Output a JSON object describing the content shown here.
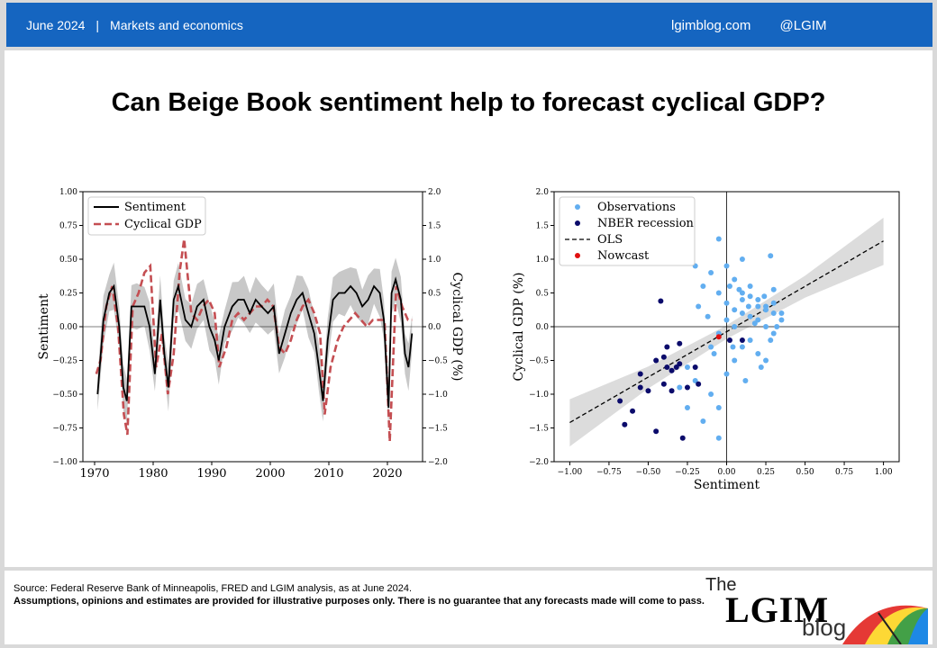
{
  "header": {
    "date": "June 2024",
    "section": "Markets and economics",
    "site": "lgimblog.com",
    "handle": "@LGIM"
  },
  "title": "Can Beige Book sentiment help to forecast cyclical GDP?",
  "footer": {
    "source": "Source: Federal Reserve Bank of Minneapolis, FRED and LGIM analysis, as at June 2024.",
    "disclaimer": "Assumptions, opinions and estimates are provided for illustrative purposes only. There is no guarantee that any forecasts made will come to pass.",
    "logo_the": "The",
    "logo_lgim": "LGIM",
    "logo_blog": "blog"
  },
  "colors": {
    "header_blue": "#1565c0",
    "sentiment": "#000000",
    "gdp": "#c44e52",
    "observations": "#62aef0",
    "nber": "#0b0b6b",
    "nowcast": "#e01010",
    "band": "#c8c8c8"
  },
  "chart_data": [
    {
      "type": "line",
      "xlim": [
        1968,
        2026
      ],
      "xticks": [
        1970,
        1980,
        1990,
        2000,
        2010,
        2020
      ],
      "ylabel": "Sentiment",
      "ylim": [
        -1.0,
        1.0
      ],
      "yticks": [
        "1.00",
        "0.75",
        "0.50",
        "0.25",
        "0.00",
        "−0.25",
        "−0.50",
        "−0.75",
        "−1.00"
      ],
      "y2label": "Cyclical GDP (%)",
      "y2lim": [
        -2.0,
        2.0
      ],
      "y2ticks": [
        "2.0",
        "1.5",
        "1.0",
        "0.5",
        "0.0",
        "−0.5",
        "−1.0",
        "−1.5",
        "−2.0"
      ],
      "legend": [
        "Sentiment",
        "Cyclical GDP"
      ],
      "legend_position": "top-left",
      "series": [
        {
          "name": "Sentiment",
          "axis": "left",
          "x": [
            1970.5,
            1971.5,
            1972.5,
            1973.3,
            1974.2,
            1974.9,
            1975.5,
            1976.3,
            1977.2,
            1978.5,
            1979.4,
            1980.3,
            1981.2,
            1981.9,
            1982.6,
            1983.5,
            1984.3,
            1985.5,
            1986.5,
            1987.5,
            1988.6,
            1989.6,
            1990.5,
            1991.2,
            1992.2,
            1993.5,
            1994.5,
            1995.5,
            1996.5,
            1997.5,
            1998.5,
            1999.6,
            2000.6,
            2001.5,
            2002.5,
            2003.5,
            2004.5,
            2005.5,
            2006.5,
            2007.5,
            2008.3,
            2009.0,
            2009.8,
            2010.7,
            2011.7,
            2012.7,
            2013.7,
            2014.7,
            2015.7,
            2016.7,
            2017.7,
            2018.7,
            2019.4,
            2020.2,
            2020.7,
            2021.4,
            2022.3,
            2023.0,
            2023.6,
            2024.2
          ],
          "y": [
            -0.5,
            0.05,
            0.25,
            0.3,
            0.0,
            -0.45,
            -0.55,
            0.15,
            0.15,
            0.15,
            0.0,
            -0.35,
            0.2,
            -0.2,
            -0.45,
            0.2,
            0.3,
            0.05,
            0.0,
            0.15,
            0.2,
            0.0,
            -0.1,
            -0.25,
            0.0,
            0.15,
            0.2,
            0.2,
            0.1,
            0.2,
            0.15,
            0.1,
            0.15,
            -0.2,
            -0.05,
            0.1,
            0.2,
            0.25,
            0.1,
            -0.05,
            -0.3,
            -0.55,
            -0.1,
            0.2,
            0.25,
            0.25,
            0.3,
            0.25,
            0.15,
            0.2,
            0.3,
            0.25,
            0.05,
            -0.6,
            0.25,
            0.35,
            0.2,
            -0.2,
            -0.3,
            -0.05
          ]
        },
        {
          "name": "Cyclical GDP",
          "axis": "right",
          "x": [
            1970.3,
            1971.0,
            1972.0,
            1973.0,
            1974.0,
            1975.0,
            1975.6,
            1976.5,
            1977.5,
            1978.5,
            1979.5,
            1980.5,
            1981.5,
            1982.5,
            1983.5,
            1984.5,
            1985.3,
            1986.5,
            1987.5,
            1988.5,
            1989.5,
            1990.5,
            1991.3,
            1992.5,
            1993.5,
            1994.5,
            1995.5,
            1996.5,
            1997.5,
            1998.5,
            1999.5,
            2000.5,
            2001.5,
            2002.5,
            2003.5,
            2004.5,
            2005.5,
            2006.5,
            2007.5,
            2008.5,
            2009.3,
            2010.3,
            2011.5,
            2012.5,
            2013.5,
            2014.5,
            2015.5,
            2016.5,
            2017.5,
            2018.5,
            2019.5,
            2020.4,
            2021.5,
            2022.5,
            2023.5,
            2024.2
          ],
          "y": [
            -0.7,
            -0.5,
            0.3,
            0.6,
            0.0,
            -1.3,
            -1.6,
            0.3,
            0.5,
            0.8,
            0.9,
            -0.6,
            -0.1,
            -1.0,
            -0.4,
            0.8,
            1.3,
            0.2,
            0.1,
            0.3,
            0.4,
            0.2,
            -0.6,
            -0.3,
            0.1,
            0.2,
            0.1,
            0.2,
            0.3,
            0.3,
            0.4,
            0.3,
            -0.3,
            -0.4,
            -0.2,
            0.1,
            0.3,
            0.4,
            0.2,
            -0.1,
            -1.3,
            -0.6,
            -0.2,
            0.0,
            0.1,
            0.2,
            0.1,
            0.0,
            0.1,
            0.1,
            0.1,
            -1.7,
            0.6,
            0.3,
            0.1,
            0.1
          ]
        }
      ]
    },
    {
      "type": "scatter",
      "xlabel": "Sentiment",
      "ylabel": "Cyclical GDP (%)",
      "xlim": [
        -1.1,
        1.1
      ],
      "ylim": [
        -2.0,
        2.0
      ],
      "xticks": [
        "−1.00",
        "−0.75",
        "−0.50",
        "−0.25",
        "0.00",
        "0.25",
        "0.50",
        "0.75",
        "1.00"
      ],
      "yticks": [
        "2.0",
        "1.5",
        "1.0",
        "0.5",
        "0.0",
        "−0.5",
        "−1.0",
        "−1.5",
        "−2.0"
      ],
      "legend": [
        "Observations",
        "NBER recession",
        "OLS",
        "Nowcast"
      ],
      "legend_position": "top-left",
      "ols": {
        "x": [
          -1.0,
          1.0
        ],
        "y": [
          -1.42,
          1.27
        ]
      },
      "series": [
        {
          "name": "Observations",
          "points": [
            [
              -0.05,
              1.3
            ],
            [
              -0.1,
              0.8
            ],
            [
              0.0,
              0.9
            ],
            [
              0.05,
              0.7
            ],
            [
              0.1,
              0.5
            ],
            [
              0.15,
              0.6
            ],
            [
              0.2,
              0.4
            ],
            [
              0.25,
              0.3
            ],
            [
              0.3,
              0.2
            ],
            [
              0.35,
              0.1
            ],
            [
              0.28,
              1.05
            ],
            [
              0.1,
              1.0
            ],
            [
              -0.2,
              0.9
            ],
            [
              -0.15,
              0.6
            ],
            [
              -0.05,
              0.5
            ],
            [
              0.0,
              0.35
            ],
            [
              0.05,
              0.25
            ],
            [
              0.1,
              0.2
            ],
            [
              0.15,
              0.15
            ],
            [
              0.2,
              0.1
            ],
            [
              0.25,
              0.0
            ],
            [
              0.3,
              -0.1
            ],
            [
              -0.25,
              -0.6
            ],
            [
              -0.2,
              -0.8
            ],
            [
              -0.1,
              -1.0
            ],
            [
              -0.05,
              -1.2
            ],
            [
              0.0,
              -0.7
            ],
            [
              0.05,
              -0.5
            ],
            [
              0.1,
              -0.3
            ],
            [
              0.15,
              -0.2
            ],
            [
              0.2,
              -0.4
            ],
            [
              0.25,
              -0.5
            ],
            [
              -0.3,
              -0.9
            ],
            [
              -0.25,
              -1.2
            ],
            [
              -0.15,
              -1.4
            ],
            [
              -0.1,
              -0.3
            ],
            [
              -0.05,
              -0.1
            ],
            [
              0.0,
              0.1
            ],
            [
              0.05,
              0.0
            ],
            [
              0.1,
              0.4
            ],
            [
              0.15,
              0.45
            ],
            [
              0.2,
              0.3
            ],
            [
              0.25,
              0.25
            ],
            [
              0.3,
              0.35
            ],
            [
              0.35,
              0.2
            ],
            [
              -0.05,
              -1.65
            ],
            [
              0.12,
              -0.8
            ],
            [
              0.22,
              -0.6
            ],
            [
              -0.18,
              0.3
            ],
            [
              -0.12,
              0.15
            ],
            [
              0.02,
              0.6
            ],
            [
              0.08,
              0.55
            ],
            [
              0.18,
              0.05
            ],
            [
              0.28,
              -0.2
            ],
            [
              0.32,
              0.0
            ],
            [
              -0.08,
              -0.4
            ],
            [
              0.04,
              -0.3
            ],
            [
              0.14,
              0.3
            ],
            [
              0.24,
              0.45
            ],
            [
              0.3,
              0.55
            ]
          ]
        },
        {
          "name": "NBER recession",
          "points": [
            [
              -0.65,
              -1.45
            ],
            [
              -0.6,
              -1.25
            ],
            [
              -0.55,
              -0.7
            ],
            [
              -0.45,
              -0.5
            ],
            [
              -0.4,
              -0.45
            ],
            [
              -0.35,
              -0.65
            ],
            [
              -0.3,
              -0.55
            ],
            [
              -0.25,
              -0.9
            ],
            [
              -0.28,
              -1.65
            ],
            [
              -0.5,
              -0.95
            ],
            [
              -0.45,
              -1.55
            ],
            [
              -0.42,
              0.38
            ],
            [
              -0.38,
              -0.3
            ],
            [
              -0.32,
              -0.6
            ],
            [
              -0.4,
              -0.85
            ],
            [
              -0.35,
              -0.95
            ],
            [
              -0.55,
              -0.9
            ],
            [
              -0.68,
              -1.1
            ],
            [
              -0.3,
              -0.25
            ],
            [
              -0.2,
              -0.6
            ],
            [
              -0.18,
              -0.85
            ],
            [
              -0.38,
              -0.6
            ],
            [
              0.02,
              -0.2
            ],
            [
              0.1,
              -0.2
            ]
          ]
        },
        {
          "name": "Nowcast",
          "points": [
            [
              -0.05,
              -0.15
            ]
          ]
        }
      ]
    }
  ]
}
